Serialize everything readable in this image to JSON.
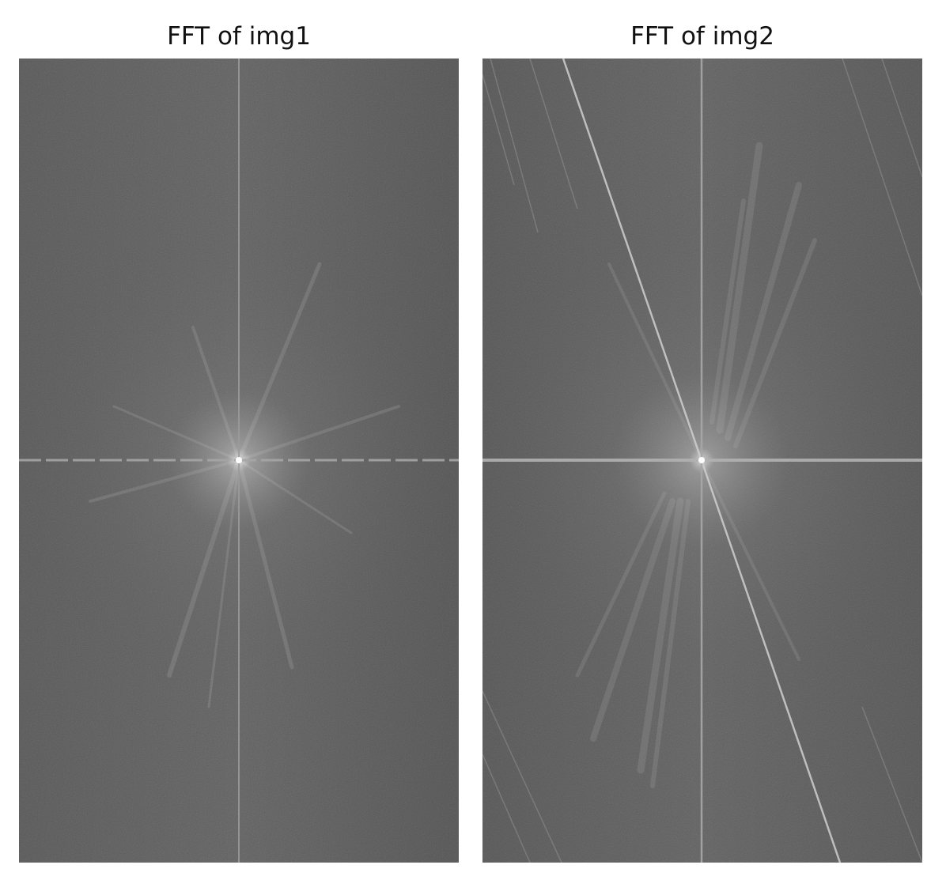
{
  "panels": [
    {
      "title": "FFT of img1"
    },
    {
      "title": "FFT of img2"
    }
  ],
  "colors": {
    "background": "#ffffff",
    "spectrum_base": "#5a5a5a",
    "spectrum_highlight": "#ececec"
  }
}
